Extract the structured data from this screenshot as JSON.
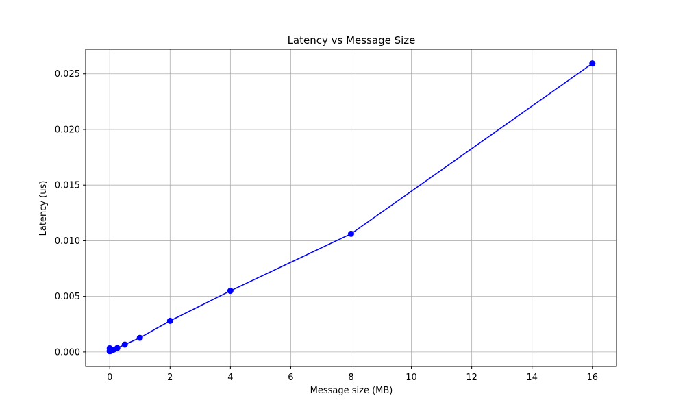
{
  "chart_data": {
    "type": "line",
    "title": "Latency vs Message Size",
    "xlabel": "Message size (MB)",
    "ylabel": "Latency (us)",
    "xlim": [
      -0.8,
      16.8
    ],
    "ylim": [
      -0.0013,
      0.0272
    ],
    "xticks": [
      0,
      2,
      4,
      6,
      8,
      10,
      12,
      14,
      16
    ],
    "xtick_labels": [
      "0",
      "2",
      "4",
      "6",
      "8",
      "10",
      "12",
      "14",
      "16"
    ],
    "yticks": [
      0.0,
      0.005,
      0.01,
      0.015,
      0.02,
      0.025
    ],
    "ytick_labels": [
      "0.000",
      "0.005",
      "0.010",
      "0.015",
      "0.020",
      "0.025"
    ],
    "grid": true,
    "series": [
      {
        "name": "Latency",
        "color": "#0000ff",
        "marker": "circle",
        "x": [
          0.0001,
          0.0002,
          0.0005,
          0.001,
          0.002,
          0.004,
          0.008,
          0.016,
          0.031,
          0.0625,
          0.125,
          0.25,
          0.5,
          1,
          2,
          4,
          8,
          16
        ],
        "y": [
          0.00034,
          8e-05,
          7e-05,
          8e-05,
          8e-05,
          9e-05,
          8e-05,
          9e-05,
          0.00011,
          0.00013,
          0.00021,
          0.00036,
          0.00067,
          0.00128,
          0.0028,
          0.0055,
          0.01062,
          0.02593
        ]
      }
    ]
  }
}
